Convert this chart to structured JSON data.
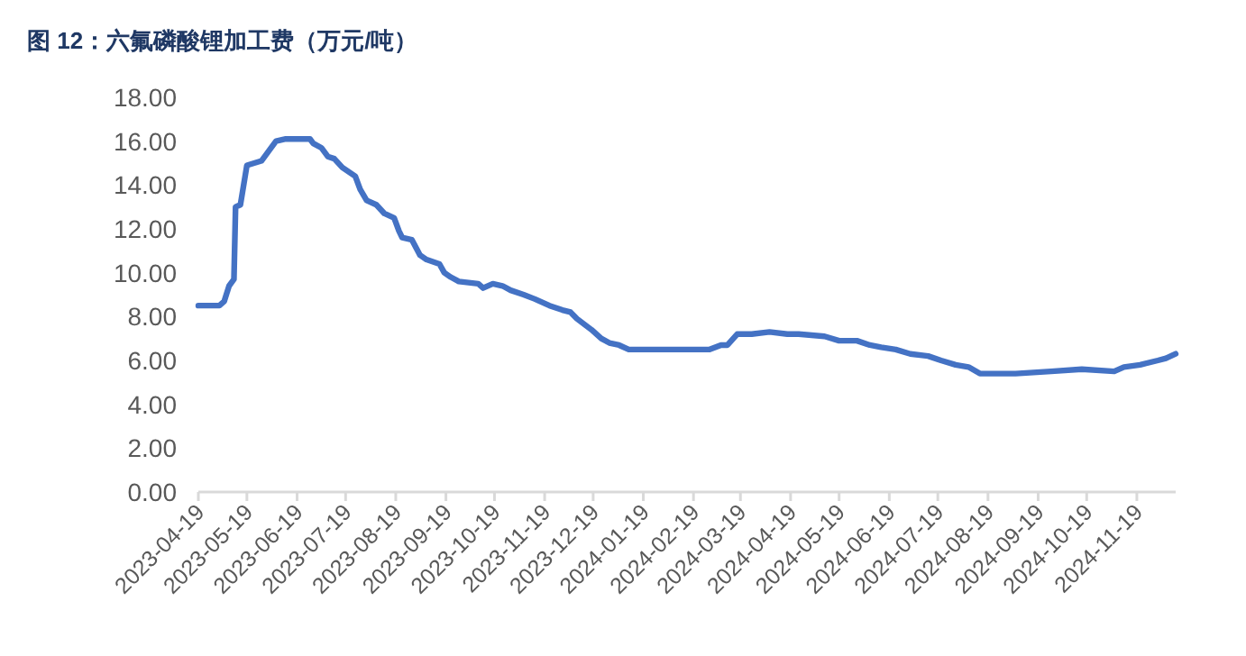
{
  "chart_data": {
    "type": "line",
    "title": "图 12：六氟磷酸锂加工费（万元/吨）",
    "x": [
      "2023-04-19",
      "2023-05-02",
      "2023-05-05",
      "2023-05-08",
      "2023-05-11",
      "2023-05-12",
      "2023-05-15",
      "2023-05-19",
      "2023-05-28",
      "2023-06-02",
      "2023-06-06",
      "2023-06-12",
      "2023-06-27",
      "2023-06-29",
      "2023-07-04",
      "2023-07-08",
      "2023-07-12",
      "2023-07-17",
      "2023-07-25",
      "2023-07-28",
      "2023-08-01",
      "2023-08-07",
      "2023-08-12",
      "2023-08-18",
      "2023-08-21",
      "2023-08-23",
      "2023-08-29",
      "2023-09-03",
      "2023-09-07",
      "2023-09-15",
      "2023-09-18",
      "2023-09-22",
      "2023-09-27",
      "2023-10-09",
      "2023-10-12",
      "2023-10-18",
      "2023-10-24",
      "2023-10-29",
      "2023-11-06",
      "2023-11-13",
      "2023-11-22",
      "2023-11-30",
      "2023-12-05",
      "2023-12-09",
      "2023-12-18",
      "2023-12-24",
      "2023-12-29",
      "2024-01-04",
      "2024-01-10",
      "2024-02-29",
      "2024-03-07",
      "2024-03-11",
      "2024-03-17",
      "2024-03-26",
      "2024-04-06",
      "2024-04-17",
      "2024-04-24",
      "2024-05-10",
      "2024-05-19",
      "2024-05-30",
      "2024-06-07",
      "2024-06-14",
      "2024-06-23",
      "2024-07-02",
      "2024-07-13",
      "2024-07-21",
      "2024-07-30",
      "2024-08-07",
      "2024-08-14",
      "2024-09-05",
      "2024-09-27",
      "2024-10-16",
      "2024-11-05",
      "2024-11-11",
      "2024-11-21",
      "2024-12-02",
      "2024-12-07",
      "2024-12-13"
    ],
    "series": [
      {
        "color": "#4472c4",
        "values": [
          8.5,
          8.5,
          8.7,
          9.4,
          9.7,
          13.0,
          13.1,
          14.9,
          15.1,
          15.6,
          16.0,
          16.1,
          16.1,
          15.9,
          15.7,
          15.3,
          15.2,
          14.8,
          14.4,
          13.8,
          13.3,
          13.1,
          12.7,
          12.5,
          11.9,
          11.6,
          11.5,
          10.8,
          10.6,
          10.4,
          10.0,
          9.8,
          9.6,
          9.5,
          9.3,
          9.5,
          9.4,
          9.2,
          9.0,
          8.8,
          8.5,
          8.3,
          8.2,
          7.9,
          7.4,
          7.0,
          6.8,
          6.7,
          6.5,
          6.5,
          6.7,
          6.7,
          7.2,
          7.2,
          7.3,
          7.2,
          7.2,
          7.1,
          6.9,
          6.9,
          6.7,
          6.6,
          6.5,
          6.3,
          6.2,
          6.0,
          5.8,
          5.7,
          5.4,
          5.4,
          5.5,
          5.6,
          5.5,
          5.7,
          5.8,
          6.0,
          6.1,
          6.3
        ]
      }
    ],
    "xlim": [
      "2023-04-19",
      "2024-12-13"
    ],
    "xticks": [
      "2023-04-19",
      "2023-05-19",
      "2023-06-19",
      "2023-07-19",
      "2023-08-19",
      "2023-09-19",
      "2023-10-19",
      "2023-11-19",
      "2023-12-19",
      "2024-01-19",
      "2024-02-19",
      "2024-03-19",
      "2024-04-19",
      "2024-05-19",
      "2024-06-19",
      "2024-07-19",
      "2024-08-19",
      "2024-09-19",
      "2024-10-19",
      "2024-11-19"
    ],
    "ylim": [
      0,
      18
    ],
    "yticks": [
      {
        "value": 0,
        "label": "0.00"
      },
      {
        "value": 2,
        "label": "2.00"
      },
      {
        "value": 4,
        "label": "4.00"
      },
      {
        "value": 6,
        "label": "6.00"
      },
      {
        "value": 8,
        "label": "8.00"
      },
      {
        "value": 10,
        "label": "10.00"
      },
      {
        "value": 12,
        "label": "12.00"
      },
      {
        "value": 14,
        "label": "14.00"
      },
      {
        "value": 16,
        "label": "16.00"
      },
      {
        "value": 18,
        "label": "18.00"
      }
    ],
    "grid": false,
    "marker": "none",
    "line_style": "solid"
  }
}
